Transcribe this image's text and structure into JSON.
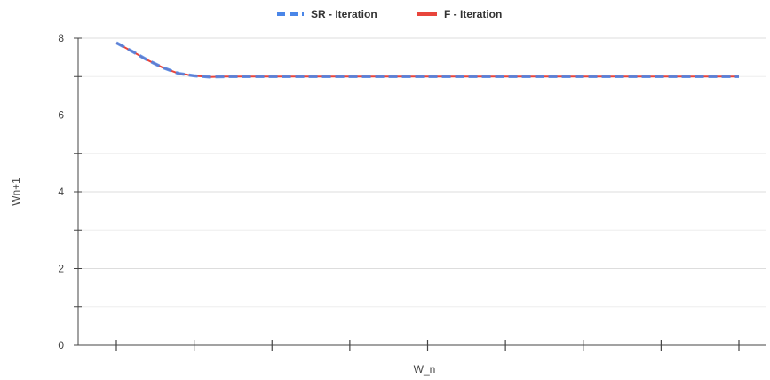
{
  "chart_data": {
    "type": "line",
    "xlabel": "W_n",
    "ylabel": "Wn+1",
    "ylim": [
      0,
      8
    ],
    "yticks": [
      0,
      2,
      4,
      6,
      8
    ],
    "x": [
      1,
      2,
      3,
      4,
      5,
      6,
      7,
      8,
      9,
      10,
      11,
      12,
      13,
      14,
      15,
      16,
      17,
      18,
      19,
      20,
      21,
      22,
      23,
      24,
      25,
      26,
      27,
      28,
      29,
      30,
      31,
      32,
      33,
      34,
      35,
      36,
      37,
      38,
      39,
      40,
      41
    ],
    "grid": true,
    "legend_position": "top-center",
    "series": [
      {
        "name": "SR - Iteration",
        "color": "#4a86e8",
        "dash": "dashed",
        "values": [
          7.88,
          7.66,
          7.43,
          7.23,
          7.08,
          7.02,
          6.99,
          7.0,
          7.0,
          7.0,
          7.0,
          7.0,
          7.0,
          7.0,
          7.0,
          7.0,
          7.0,
          7.0,
          7.0,
          7.0,
          7.0,
          7.0,
          7.0,
          7.0,
          7.0,
          7.0,
          7.0,
          7.0,
          7.0,
          7.0,
          7.0,
          7.0,
          7.0,
          7.0,
          7.0,
          7.0,
          7.0,
          7.0,
          7.0,
          7.0,
          7.0
        ]
      },
      {
        "name": "F - Iteration",
        "color": "#e8453c",
        "dash": "solid",
        "values": [
          7.88,
          7.66,
          7.43,
          7.23,
          7.08,
          7.02,
          6.99,
          7.0,
          7.0,
          7.0,
          7.0,
          7.0,
          7.0,
          7.0,
          7.0,
          7.0,
          7.0,
          7.0,
          7.0,
          7.0,
          7.0,
          7.0,
          7.0,
          7.0,
          7.0,
          7.0,
          7.0,
          7.0,
          7.0,
          7.0,
          7.0,
          7.0,
          7.0,
          7.0,
          7.0,
          7.0,
          7.0,
          7.0,
          7.0,
          7.0,
          7.0
        ]
      }
    ]
  }
}
